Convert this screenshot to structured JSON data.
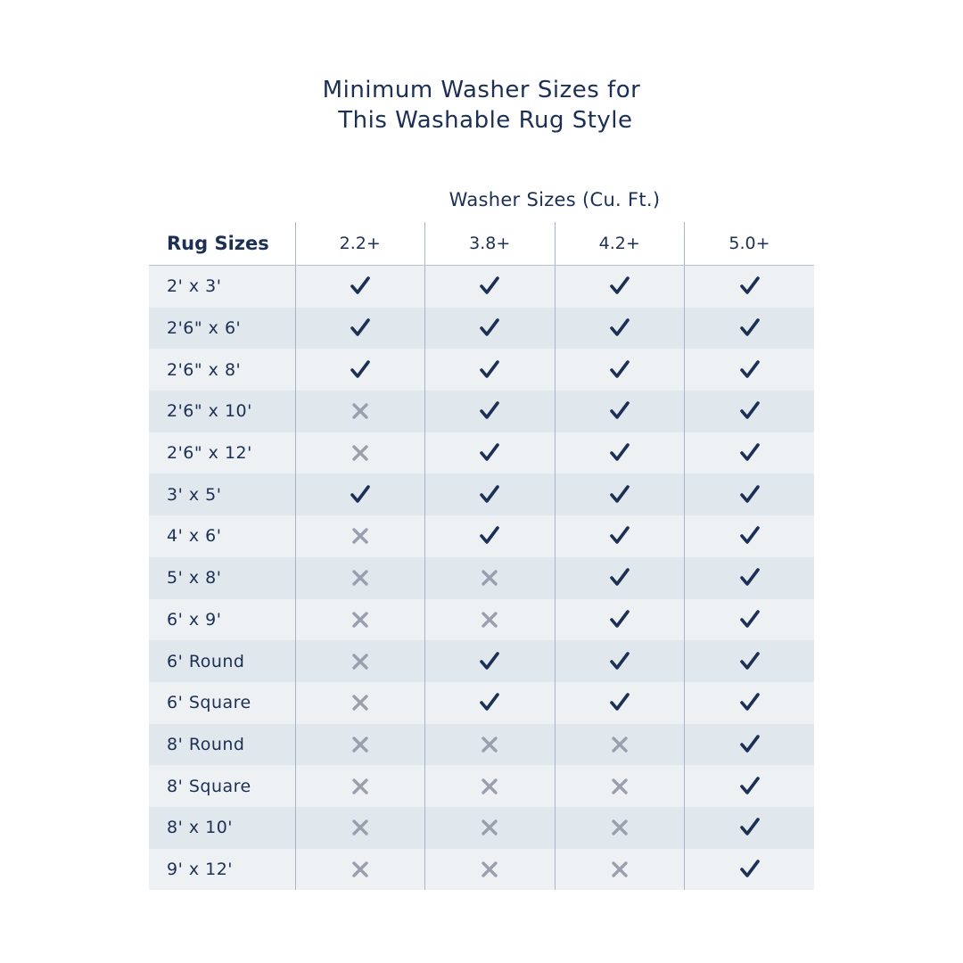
{
  "title": [
    "Minimum Washer Sizes for",
    " This Washable Rug Style"
  ],
  "washer_header": "Washer Sizes (Cu. Ft.)",
  "rug_header": "Rug Sizes",
  "washer_sizes": [
    "2.2+",
    "3.8+",
    "4.2+",
    "5.0+"
  ],
  "colors": {
    "text": "#1c2f55",
    "check": "#1c2f55",
    "cross": "#9a9fae",
    "row_light": "#edf1f4",
    "row_dark": "#e0e7ed"
  },
  "rows": [
    {
      "size": "2' x 3'",
      "fits": [
        true,
        true,
        true,
        true
      ]
    },
    {
      "size": "2'6\" x 6'",
      "fits": [
        true,
        true,
        true,
        true
      ]
    },
    {
      "size": "2'6\" x 8'",
      "fits": [
        true,
        true,
        true,
        true
      ]
    },
    {
      "size": "2'6\" x 10'",
      "fits": [
        false,
        true,
        true,
        true
      ]
    },
    {
      "size": "2'6\" x 12'",
      "fits": [
        false,
        true,
        true,
        true
      ]
    },
    {
      "size": "3' x 5'",
      "fits": [
        true,
        true,
        true,
        true
      ]
    },
    {
      "size": "4' x 6'",
      "fits": [
        false,
        true,
        true,
        true
      ]
    },
    {
      "size": "5' x 8'",
      "fits": [
        false,
        false,
        true,
        true
      ]
    },
    {
      "size": "6' x 9'",
      "fits": [
        false,
        false,
        true,
        true
      ]
    },
    {
      "size": "6' Round",
      "fits": [
        false,
        true,
        true,
        true
      ]
    },
    {
      "size": "6' Square",
      "fits": [
        false,
        true,
        true,
        true
      ]
    },
    {
      "size": "8' Round",
      "fits": [
        false,
        false,
        false,
        true
      ]
    },
    {
      "size": "8' Square",
      "fits": [
        false,
        false,
        false,
        true
      ]
    },
    {
      "size": "8' x 10'",
      "fits": [
        false,
        false,
        false,
        true
      ]
    },
    {
      "size": "9' x 12'",
      "fits": [
        false,
        false,
        false,
        true
      ]
    }
  ]
}
